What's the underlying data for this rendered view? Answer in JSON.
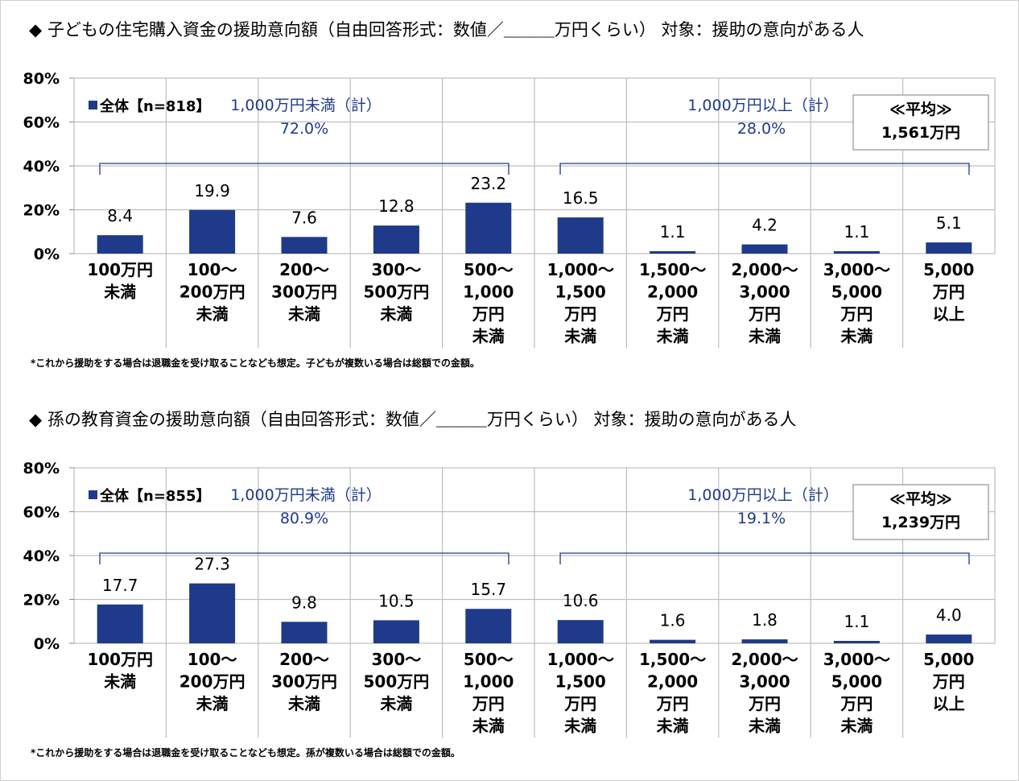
{
  "chart_data": [
    {
      "type": "bar",
      "title": "◆ 子どもの住宅購入資金の援助意向額（自由回答形式：数値／＿＿＿万円くらい） 対象：援助の意向がある人",
      "legend": "全体【n=818】",
      "categories": [
        [
          "100万円",
          "未満"
        ],
        [
          "100～",
          "200万円",
          "未満"
        ],
        [
          "200～",
          "300万円",
          "未満"
        ],
        [
          "300～",
          "500万円",
          "未満"
        ],
        [
          "500～",
          "1,000",
          "万円",
          "未満"
        ],
        [
          "1,000～",
          "1,500",
          "万円",
          "未満"
        ],
        [
          "1,500～",
          "2,000",
          "万円",
          "未満"
        ],
        [
          "2,000～",
          "3,000",
          "万円",
          "未満"
        ],
        [
          "3,000～",
          "5,000",
          "万円",
          "未満"
        ],
        [
          "5,000",
          "万円",
          "以上"
        ]
      ],
      "values": [
        8.4,
        19.9,
        7.6,
        12.8,
        23.2,
        16.5,
        1.1,
        4.2,
        1.1,
        5.1
      ],
      "value_labels": [
        "8.4",
        "19.9",
        "7.6",
        "12.8",
        "23.2",
        "16.5",
        "1.1",
        "4.2",
        "1.1",
        "5.1"
      ],
      "yticks": [
        "80%",
        "60%",
        "40%",
        "20%",
        "0%"
      ],
      "ylim": [
        0,
        80
      ],
      "groups": [
        {
          "label": "1,000万円未満（計）",
          "value": "72.0%",
          "from": 0,
          "to": 4
        },
        {
          "label": "1,000万円以上（計）",
          "value": "28.0%",
          "from": 5,
          "to": 9
        }
      ],
      "average": {
        "label": "≪平均≫",
        "value": "1,561万円"
      },
      "footnote": "*これから援助をする場合は退職金を受け取ることなども想定。子どもが複数いる場合は総額での金額。",
      "bar_color": "#1f3a8a"
    },
    {
      "type": "bar",
      "title": "◆ 孫の教育資金の援助意向額（自由回答形式：数値／＿＿＿万円くらい） 対象：援助の意向がある人",
      "legend": "全体【n=855】",
      "categories": [
        [
          "100万円",
          "未満"
        ],
        [
          "100～",
          "200万円",
          "未満"
        ],
        [
          "200～",
          "300万円",
          "未満"
        ],
        [
          "300～",
          "500万円",
          "未満"
        ],
        [
          "500～",
          "1,000",
          "万円",
          "未満"
        ],
        [
          "1,000～",
          "1,500",
          "万円",
          "未満"
        ],
        [
          "1,500～",
          "2,000",
          "万円",
          "未満"
        ],
        [
          "2,000～",
          "3,000",
          "万円",
          "未満"
        ],
        [
          "3,000～",
          "5,000",
          "万円",
          "未満"
        ],
        [
          "5,000",
          "万円",
          "以上"
        ]
      ],
      "values": [
        17.7,
        27.3,
        9.8,
        10.5,
        15.7,
        10.6,
        1.6,
        1.8,
        1.1,
        4.0
      ],
      "value_labels": [
        "17.7",
        "27.3",
        "9.8",
        "10.5",
        "15.7",
        "10.6",
        "1.6",
        "1.8",
        "1.1",
        "4.0"
      ],
      "yticks": [
        "80%",
        "60%",
        "40%",
        "20%",
        "0%"
      ],
      "ylim": [
        0,
        80
      ],
      "groups": [
        {
          "label": "1,000万円未満（計）",
          "value": "80.9%",
          "from": 0,
          "to": 4
        },
        {
          "label": "1,000万円以上（計）",
          "value": "19.1%",
          "from": 5,
          "to": 9
        }
      ],
      "average": {
        "label": "≪平均≫",
        "value": "1,239万円"
      },
      "footnote": "*これから援助をする場合は退職金を受け取ることなども想定。孫が複数いる場合は総額での金額。",
      "bar_color": "#1f3a8a"
    }
  ]
}
